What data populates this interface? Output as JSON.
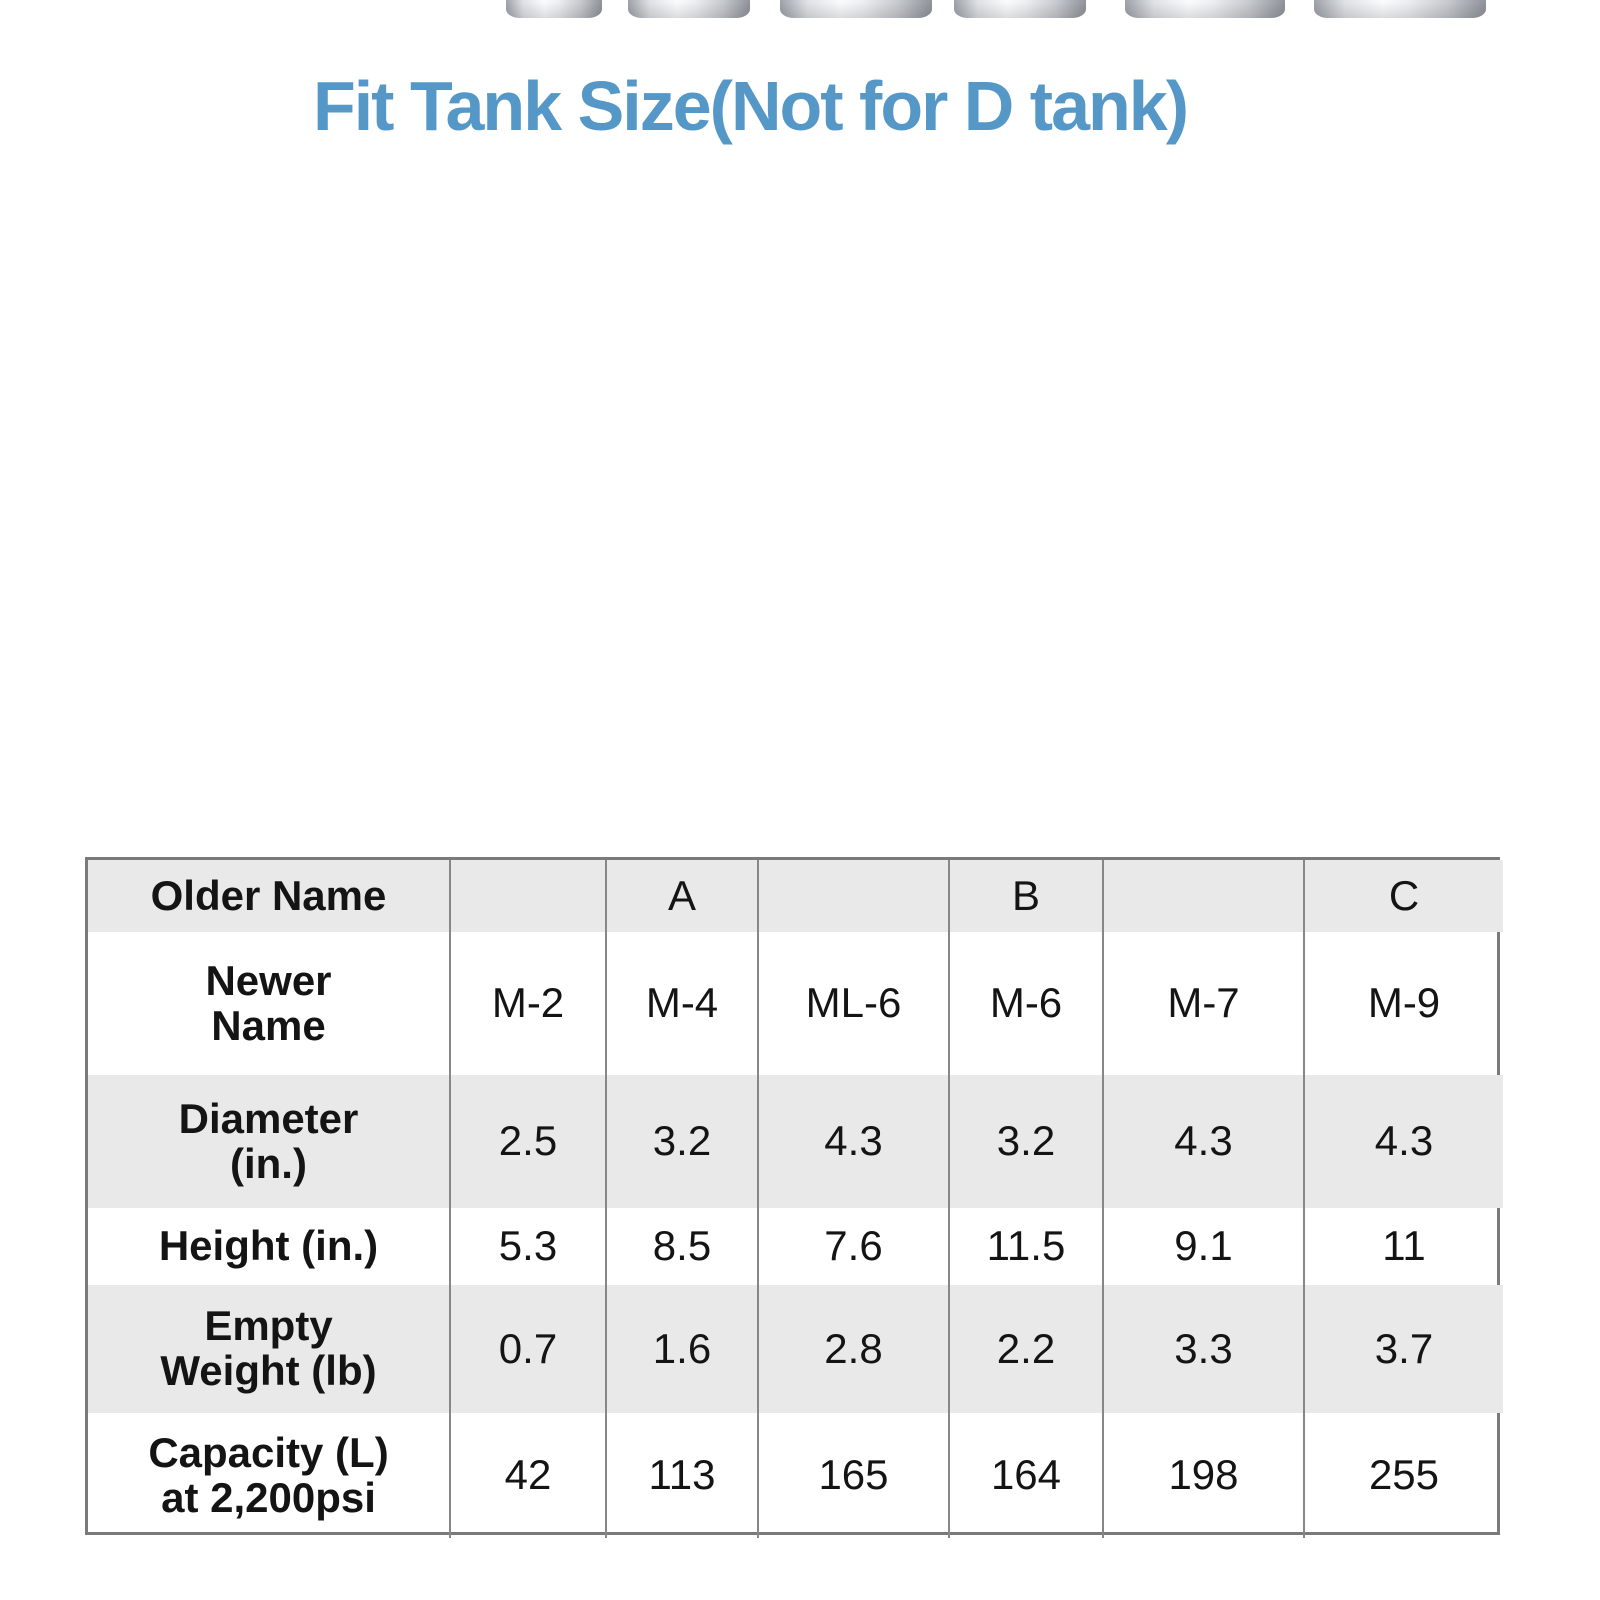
{
  "title": "Fit Tank Size(Not for D tank)",
  "colors": {
    "title_blue": "#5598c8",
    "tank_green": "#25a351",
    "tank_silver": "#dfe2e6",
    "table_shade": "#e9e9e9",
    "table_border": "#7a7a7a"
  },
  "tanks": [
    {
      "name": "M-2"
    },
    {
      "name": "M-4"
    },
    {
      "name": "ML-6"
    },
    {
      "name": "M-6"
    },
    {
      "name": "M-7"
    },
    {
      "name": "M-9"
    }
  ],
  "table": {
    "rows": [
      {
        "label": "Older Name",
        "cells": [
          "",
          "A",
          "",
          "B",
          "",
          "C"
        ]
      },
      {
        "label": "Newer\nName",
        "cells": [
          "M-2",
          "M-4",
          "ML-6",
          "M-6",
          "M-7",
          "M-9"
        ]
      },
      {
        "label": "Diameter\n(in.)",
        "cells": [
          "2.5",
          "3.2",
          "4.3",
          "3.2",
          "4.3",
          "4.3"
        ]
      },
      {
        "label": "Height (in.)",
        "cells": [
          "5.3",
          "8.5",
          "7.6",
          "11.5",
          "9.1",
          "11"
        ]
      },
      {
        "label": "Empty\nWeight (lb)",
        "cells": [
          "0.7",
          "1.6",
          "2.8",
          "2.2",
          "3.3",
          "3.7"
        ]
      },
      {
        "label": "Capacity (L)\nat 2,200psi",
        "cells": [
          "42",
          "113",
          "165",
          "164",
          "198",
          "255"
        ]
      }
    ]
  },
  "chart_data": {
    "type": "table",
    "title": "Fit Tank Size(Not for D tank)",
    "row_labels": [
      "Older Name",
      "Newer Name",
      "Diameter (in.)",
      "Height (in.)",
      "Empty Weight (lb)",
      "Capacity (L) at 2,200psi"
    ],
    "older_names": [
      "",
      "A",
      "",
      "B",
      "",
      "C"
    ],
    "newer_names": [
      "M-2",
      "M-4",
      "ML-6",
      "M-6",
      "M-7",
      "M-9"
    ],
    "diameter_in": [
      2.5,
      3.2,
      4.3,
      3.2,
      4.3,
      4.3
    ],
    "height_in": [
      5.3,
      8.5,
      7.6,
      11.5,
      9.1,
      11
    ],
    "empty_weight_lb": [
      0.7,
      1.6,
      2.8,
      2.2,
      3.3,
      3.7
    ],
    "capacity_L_at_2200psi": [
      42,
      113,
      165,
      164,
      198,
      255
    ]
  }
}
